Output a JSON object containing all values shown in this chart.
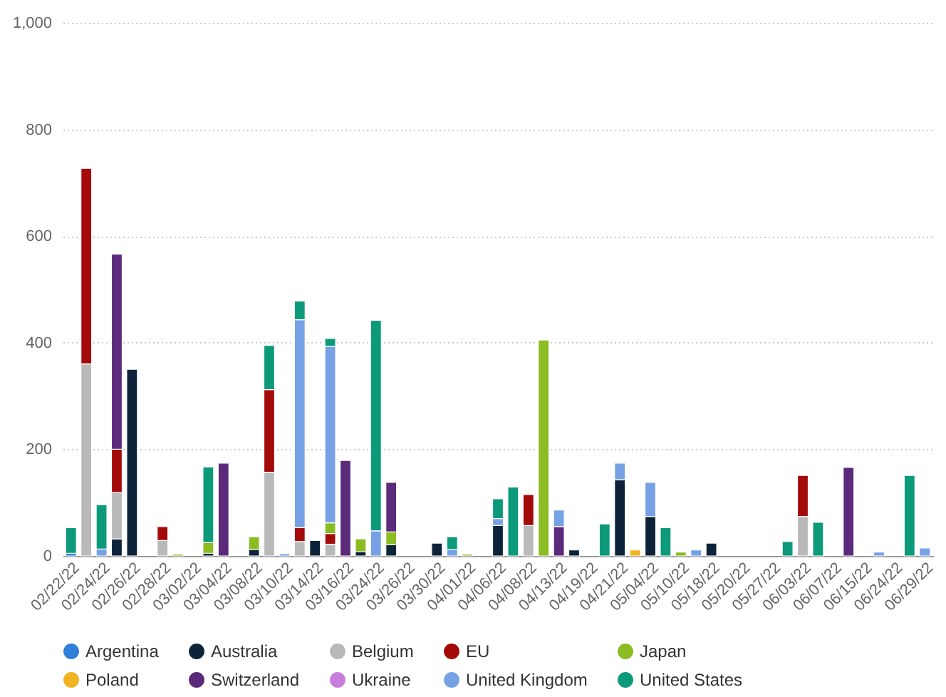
{
  "chart_data": {
    "type": "bar",
    "stacked": true,
    "grid": "y",
    "legend": "bottom",
    "ylim": [
      0,
      1000
    ],
    "yticks": [
      0,
      200,
      400,
      600,
      800,
      {
        "value": 1000,
        "label": "1,000"
      }
    ],
    "categories": [
      "02/22/22",
      null,
      "02/24/22",
      null,
      "02/26/22",
      null,
      "02/28/22",
      null,
      "03/02/22",
      null,
      "03/04/22",
      null,
      "03/08/22",
      null,
      "03/10/22",
      null,
      "03/14/22",
      null,
      "03/16/22",
      null,
      "03/24/22",
      null,
      "03/26/22",
      null,
      "03/30/22",
      null,
      "04/01/22",
      null,
      "04/06/22",
      null,
      "04/08/22",
      null,
      "04/13/22",
      null,
      "04/19/22",
      null,
      "04/21/22",
      null,
      "05/04/22",
      null,
      "05/10/22",
      null,
      "05/18/22",
      null,
      "05/20/22",
      null,
      "05/27/22",
      null,
      "06/03/22",
      null,
      "06/07/22",
      null,
      "06/15/22",
      null,
      "06/24/22",
      null,
      "06/29/22"
    ],
    "series": [
      {
        "name": "Argentina",
        "color": "#2f7ed8",
        "values": [
          5,
          null,
          null,
          null,
          null,
          null,
          null,
          null,
          null,
          null,
          null,
          null,
          null,
          null,
          null,
          null,
          null,
          null,
          null,
          null,
          null,
          null,
          null,
          null,
          null,
          null,
          null,
          null,
          null,
          null,
          null,
          null,
          null,
          null,
          null,
          null,
          null,
          null,
          null,
          null,
          null,
          null,
          null,
          null,
          null,
          null,
          null,
          null,
          null,
          null,
          null,
          null,
          null,
          null,
          null,
          null,
          null
        ]
      },
      {
        "name": "Australia",
        "color": "#0d233a",
        "values": [
          null,
          null,
          null,
          32,
          350,
          null,
          null,
          null,
          null,
          5,
          null,
          null,
          12,
          null,
          null,
          null,
          29,
          null,
          null,
          8,
          null,
          21,
          null,
          null,
          24,
          null,
          null,
          null,
          57,
          null,
          null,
          null,
          null,
          11,
          null,
          null,
          143,
          null,
          74,
          null,
          null,
          null,
          24,
          null,
          null,
          null,
          null,
          null,
          null,
          null,
          null,
          null,
          null,
          null,
          null,
          null,
          null
        ]
      },
      {
        "name": "Belgium",
        "color": "#b9b9b9",
        "values": [
          null,
          360,
          null,
          87,
          null,
          null,
          29,
          null,
          null,
          null,
          null,
          null,
          null,
          157,
          null,
          27,
          null,
          22,
          null,
          null,
          null,
          null,
          null,
          null,
          null,
          null,
          null,
          null,
          null,
          null,
          57,
          null,
          null,
          null,
          null,
          null,
          null,
          null,
          null,
          null,
          null,
          null,
          null,
          null,
          null,
          null,
          null,
          null,
          74,
          null,
          null,
          null,
          null,
          null,
          null,
          null,
          null
        ]
      },
      {
        "name": "EU",
        "color": "#a30b0b",
        "values": [
          null,
          367,
          null,
          81,
          null,
          null,
          26,
          null,
          null,
          null,
          null,
          null,
          null,
          155,
          null,
          26,
          null,
          20,
          null,
          null,
          null,
          null,
          null,
          null,
          null,
          null,
          null,
          null,
          null,
          null,
          58,
          null,
          null,
          null,
          null,
          null,
          null,
          null,
          null,
          null,
          null,
          null,
          null,
          null,
          null,
          null,
          null,
          null,
          77,
          null,
          null,
          null,
          null,
          null,
          null,
          null,
          null
        ]
      },
      {
        "name": "Japan",
        "color": "#8bbc21",
        "values": [
          null,
          null,
          null,
          null,
          null,
          null,
          null,
          3,
          null,
          20,
          null,
          null,
          24,
          null,
          null,
          null,
          null,
          20,
          null,
          24,
          null,
          24,
          null,
          null,
          null,
          null,
          3,
          null,
          null,
          null,
          null,
          405,
          null,
          null,
          null,
          null,
          null,
          null,
          null,
          null,
          7,
          null,
          null,
          null,
          null,
          null,
          null,
          null,
          null,
          null,
          null,
          null,
          null,
          null,
          null,
          null,
          null
        ]
      },
      {
        "name": "Poland",
        "color": "#f0b322",
        "values": [
          null,
          null,
          null,
          null,
          null,
          null,
          null,
          null,
          null,
          null,
          null,
          null,
          null,
          null,
          null,
          null,
          null,
          null,
          null,
          null,
          null,
          null,
          null,
          null,
          null,
          null,
          null,
          null,
          null,
          null,
          null,
          null,
          null,
          null,
          null,
          null,
          null,
          11,
          null,
          null,
          null,
          null,
          null,
          null,
          null,
          null,
          null,
          null,
          null,
          null,
          null,
          null,
          null,
          null,
          null,
          null,
          null
        ]
      },
      {
        "name": "Switzerland",
        "color": "#5c2a7a",
        "values": [
          null,
          null,
          null,
          366,
          null,
          null,
          null,
          null,
          null,
          null,
          174,
          null,
          null,
          null,
          null,
          null,
          null,
          null,
          179,
          null,
          null,
          93,
          null,
          null,
          null,
          null,
          null,
          null,
          null,
          null,
          null,
          null,
          55,
          null,
          null,
          null,
          null,
          null,
          null,
          null,
          null,
          null,
          null,
          null,
          null,
          null,
          null,
          null,
          null,
          null,
          null,
          166,
          null,
          null,
          null,
          null,
          null
        ]
      },
      {
        "name": "Ukraine",
        "color": "#c77ddc",
        "values": [
          null,
          null,
          null,
          null,
          null,
          null,
          null,
          null,
          null,
          null,
          null,
          null,
          null,
          null,
          null,
          null,
          null,
          null,
          null,
          null,
          null,
          null,
          null,
          null,
          null,
          null,
          null,
          null,
          null,
          null,
          null,
          null,
          null,
          null,
          null,
          null,
          null,
          null,
          null,
          null,
          null,
          null,
          null,
          null,
          null,
          null,
          null,
          null,
          null,
          null,
          null,
          null,
          null,
          null,
          null,
          null,
          null
        ]
      },
      {
        "name": "United Kingdom",
        "color": "#77a1e5",
        "values": [
          null,
          null,
          13,
          null,
          null,
          null,
          null,
          null,
          null,
          null,
          null,
          null,
          null,
          null,
          4,
          390,
          null,
          331,
          null,
          null,
          47,
          null,
          null,
          null,
          null,
          12,
          null,
          null,
          13,
          null,
          null,
          null,
          31,
          null,
          null,
          null,
          31,
          null,
          64,
          null,
          null,
          11,
          null,
          null,
          null,
          null,
          null,
          null,
          null,
          null,
          null,
          null,
          null,
          7,
          null,
          null,
          15
        ]
      },
      {
        "name": "United States",
        "color": "#0d9a7a",
        "values": [
          48,
          null,
          83,
          null,
          null,
          null,
          null,
          null,
          null,
          142,
          null,
          null,
          null,
          83,
          null,
          35,
          null,
          15,
          null,
          null,
          395,
          null,
          null,
          null,
          null,
          24,
          null,
          null,
          37,
          129,
          null,
          null,
          null,
          null,
          null,
          60,
          null,
          null,
          null,
          53,
          null,
          null,
          null,
          null,
          null,
          null,
          null,
          27,
          null,
          63,
          null,
          null,
          null,
          null,
          null,
          151,
          null
        ]
      }
    ]
  }
}
